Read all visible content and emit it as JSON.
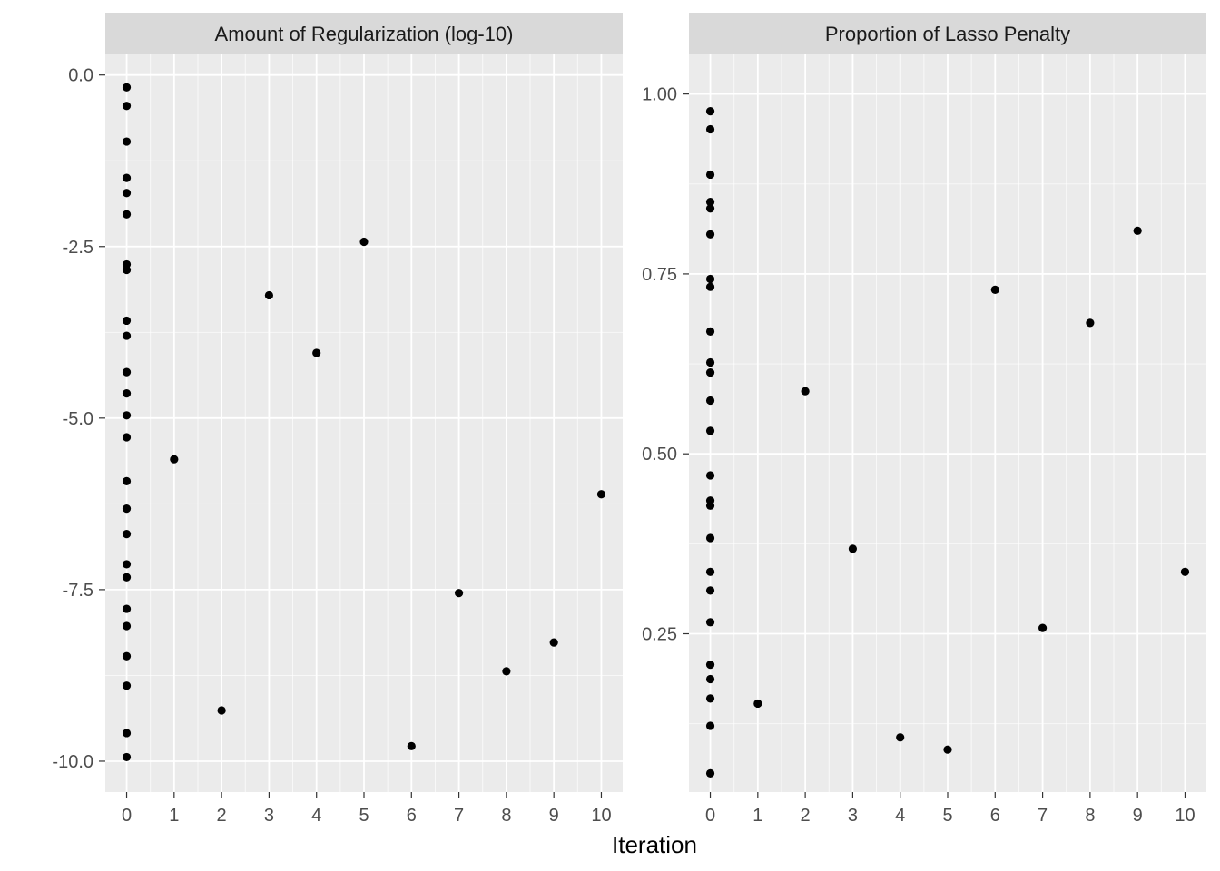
{
  "colors": {
    "panel_background": "#EBEBEB",
    "strip_background": "#D9D9D9",
    "grid": "#FFFFFF",
    "point": "#000000",
    "tick_text": "#4D4D4D"
  },
  "x_axis_title": "Iteration",
  "chart_data": [
    {
      "type": "scatter",
      "title": "Amount of Regularization (log-10)",
      "xlabel": "Iteration",
      "ylabel": "",
      "xlim": [
        -0.45,
        10.45
      ],
      "ylim": [
        -10.45,
        0.3
      ],
      "x_ticks": [
        0,
        1,
        2,
        3,
        4,
        5,
        6,
        7,
        8,
        9,
        10
      ],
      "x_tick_labels": [
        "0",
        "1",
        "2",
        "3",
        "4",
        "5",
        "6",
        "7",
        "8",
        "9",
        "10"
      ],
      "y_ticks": [
        0,
        -2.5,
        -5,
        -7.5,
        -10
      ],
      "y_tick_labels": [
        "0.0",
        "-2.5",
        "-5.0",
        "-7.5",
        "-10.0"
      ],
      "grid": true,
      "points": [
        {
          "x": 0,
          "y": -0.18
        },
        {
          "x": 0,
          "y": -0.45
        },
        {
          "x": 0,
          "y": -0.97
        },
        {
          "x": 0,
          "y": -1.5
        },
        {
          "x": 0,
          "y": -1.72
        },
        {
          "x": 0,
          "y": -2.03
        },
        {
          "x": 0,
          "y": -2.76
        },
        {
          "x": 0,
          "y": -2.84
        },
        {
          "x": 0,
          "y": -3.58
        },
        {
          "x": 0,
          "y": -3.8
        },
        {
          "x": 0,
          "y": -4.33
        },
        {
          "x": 0,
          "y": -4.64
        },
        {
          "x": 0,
          "y": -4.96
        },
        {
          "x": 0,
          "y": -5.28
        },
        {
          "x": 0,
          "y": -5.92
        },
        {
          "x": 0,
          "y": -6.32
        },
        {
          "x": 0,
          "y": -6.69
        },
        {
          "x": 0,
          "y": -7.13
        },
        {
          "x": 0,
          "y": -7.32
        },
        {
          "x": 0,
          "y": -7.78
        },
        {
          "x": 0,
          "y": -8.03
        },
        {
          "x": 0,
          "y": -8.47
        },
        {
          "x": 0,
          "y": -8.9
        },
        {
          "x": 0,
          "y": -9.59
        },
        {
          "x": 0,
          "y": -9.94
        },
        {
          "x": 1,
          "y": -5.6
        },
        {
          "x": 2,
          "y": -9.26
        },
        {
          "x": 3,
          "y": -3.21
        },
        {
          "x": 4,
          "y": -4.05
        },
        {
          "x": 5,
          "y": -2.43
        },
        {
          "x": 6,
          "y": -9.78
        },
        {
          "x": 7,
          "y": -7.55
        },
        {
          "x": 8,
          "y": -8.69
        },
        {
          "x": 9,
          "y": -8.27
        },
        {
          "x": 10,
          "y": -6.11
        }
      ]
    },
    {
      "type": "scatter",
      "title": "Proportion of Lasso Penalty",
      "xlabel": "Iteration",
      "ylabel": "",
      "xlim": [
        -0.45,
        10.45
      ],
      "ylim": [
        0.03,
        1.055
      ],
      "x_ticks": [
        0,
        1,
        2,
        3,
        4,
        5,
        6,
        7,
        8,
        9,
        10
      ],
      "x_tick_labels": [
        "0",
        "1",
        "2",
        "3",
        "4",
        "5",
        "6",
        "7",
        "8",
        "9",
        "10"
      ],
      "y_ticks": [
        1,
        0.75,
        0.5,
        0.25
      ],
      "y_tick_labels": [
        "1.00",
        "0.75",
        "0.50",
        "0.25"
      ],
      "grid": true,
      "points": [
        {
          "x": 0,
          "y": 0.976
        },
        {
          "x": 0,
          "y": 0.951
        },
        {
          "x": 0,
          "y": 0.888
        },
        {
          "x": 0,
          "y": 0.85
        },
        {
          "x": 0,
          "y": 0.841
        },
        {
          "x": 0,
          "y": 0.805
        },
        {
          "x": 0,
          "y": 0.743
        },
        {
          "x": 0,
          "y": 0.732
        },
        {
          "x": 0,
          "y": 0.67
        },
        {
          "x": 0,
          "y": 0.627
        },
        {
          "x": 0,
          "y": 0.613
        },
        {
          "x": 0,
          "y": 0.574
        },
        {
          "x": 0,
          "y": 0.532
        },
        {
          "x": 0,
          "y": 0.47
        },
        {
          "x": 0,
          "y": 0.435
        },
        {
          "x": 0,
          "y": 0.428
        },
        {
          "x": 0,
          "y": 0.383
        },
        {
          "x": 0,
          "y": 0.336
        },
        {
          "x": 0,
          "y": 0.31
        },
        {
          "x": 0,
          "y": 0.266
        },
        {
          "x": 0,
          "y": 0.207
        },
        {
          "x": 0,
          "y": 0.187
        },
        {
          "x": 0,
          "y": 0.16
        },
        {
          "x": 0,
          "y": 0.122
        },
        {
          "x": 0,
          "y": 0.056
        },
        {
          "x": 1,
          "y": 0.153
        },
        {
          "x": 2,
          "y": 0.587
        },
        {
          "x": 3,
          "y": 0.368
        },
        {
          "x": 4,
          "y": 0.106
        },
        {
          "x": 5,
          "y": 0.089
        },
        {
          "x": 6,
          "y": 0.728
        },
        {
          "x": 7,
          "y": 0.258
        },
        {
          "x": 8,
          "y": 0.682
        },
        {
          "x": 9,
          "y": 0.81
        },
        {
          "x": 10,
          "y": 0.336
        }
      ]
    }
  ]
}
